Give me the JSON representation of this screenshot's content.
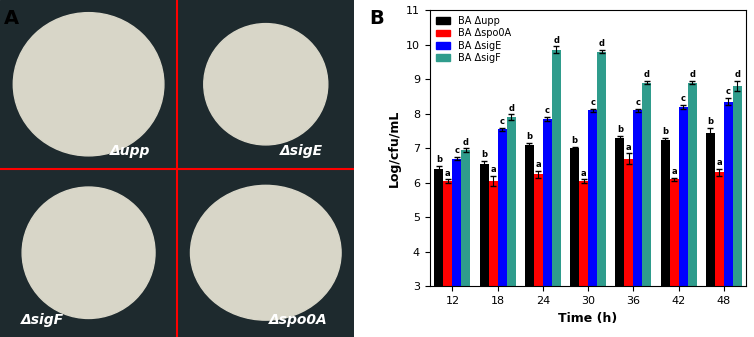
{
  "panel_labels": [
    "A",
    "B"
  ],
  "panel_a": {
    "colonies": [
      "Δupp",
      "ΔsigE",
      "ΔsigF",
      "Δspo0A"
    ]
  },
  "chart_data": {
    "type": "bar",
    "x_label": "Time (h)",
    "y_label": "Log/cfu/mL",
    "categories": [
      "12",
      "18",
      "24",
      "30",
      "36",
      "42",
      "48"
    ],
    "series": [
      {
        "name": "BA Δupp",
        "color": "#000000",
        "values": [
          6.4,
          6.55,
          7.1,
          7.0,
          7.3,
          7.25,
          7.45
        ],
        "errors": [
          0.1,
          0.08,
          0.05,
          0.05,
          0.05,
          0.05,
          0.15
        ],
        "annotations": [
          "b",
          "b",
          "b",
          "b",
          "b",
          "b",
          "b"
        ]
      },
      {
        "name": "BA Δspo0A",
        "color": "#ff0000",
        "values": [
          6.05,
          6.05,
          6.25,
          6.05,
          6.7,
          6.1,
          6.3
        ],
        "errors": [
          0.05,
          0.15,
          0.1,
          0.05,
          0.15,
          0.05,
          0.1
        ],
        "annotations": [
          "a",
          "a",
          "a",
          "a",
          "a",
          "a",
          "a"
        ]
      },
      {
        "name": "BA ΔsigE",
        "color": "#0000ff",
        "values": [
          6.7,
          7.55,
          7.85,
          8.1,
          8.1,
          8.2,
          8.35
        ],
        "errors": [
          0.05,
          0.05,
          0.05,
          0.05,
          0.05,
          0.05,
          0.1
        ],
        "annotations": [
          "c",
          "c",
          "c",
          "c",
          "c",
          "c",
          "c"
        ]
      },
      {
        "name": "BA ΔsigF",
        "color": "#2f9c8c",
        "values": [
          6.95,
          7.9,
          9.85,
          9.8,
          8.9,
          8.9,
          8.8
        ],
        "errors": [
          0.05,
          0.08,
          0.1,
          0.05,
          0.05,
          0.05,
          0.15
        ],
        "annotations": [
          "d",
          "d",
          "d",
          "d",
          "d",
          "d",
          "d"
        ]
      }
    ],
    "ylim": [
      3,
      11
    ],
    "yticks": [
      3,
      4,
      5,
      6,
      7,
      8,
      9,
      10,
      11
    ],
    "legend": "upper left"
  }
}
